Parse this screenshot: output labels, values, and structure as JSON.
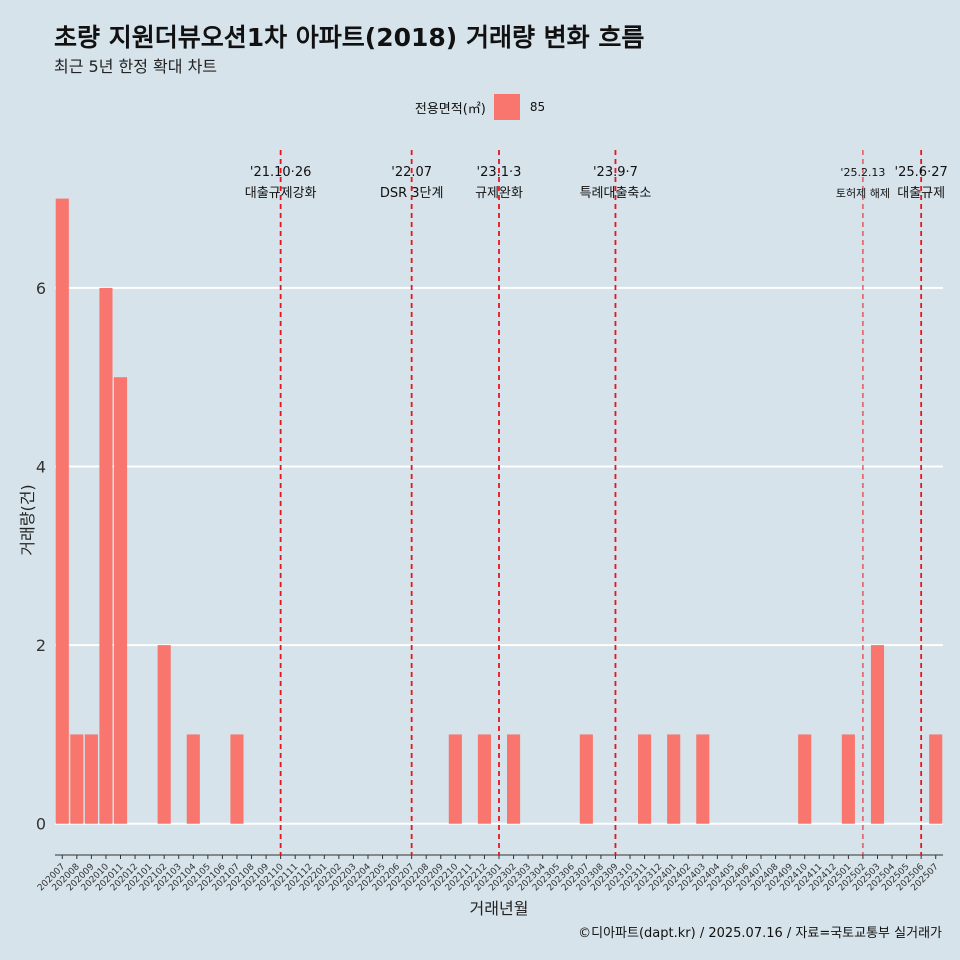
{
  "title": "초량 지원더뷰오션1차 아파트(2018) 거래량 변화 흐름",
  "subtitle": "최근 5년 한정 확대 차트",
  "caption": "©디아파트(dapt.kr) / 2025.07.16 / 자료=국토교통부 실거래가",
  "legend": {
    "title": "전용면적(㎡)",
    "label": "85",
    "color": "#f8766d"
  },
  "chart_data": {
    "type": "bar",
    "xlabel": "거래년월",
    "ylabel": "거래량(건)",
    "ylim": [
      -0.35,
      7.6
    ],
    "yticks": [
      0,
      2,
      4,
      6
    ],
    "grid": true,
    "legend_position": "top",
    "bar_color": "#f8766d",
    "categories": [
      "202007",
      "202008",
      "202009",
      "202010",
      "202011",
      "202012",
      "202101",
      "202102",
      "202103",
      "202104",
      "202105",
      "202106",
      "202107",
      "202108",
      "202109",
      "202110",
      "202111",
      "202112",
      "202201",
      "202202",
      "202203",
      "202204",
      "202205",
      "202206",
      "202207",
      "202208",
      "202209",
      "202210",
      "202211",
      "202212",
      "202301",
      "202302",
      "202303",
      "202304",
      "202305",
      "202306",
      "202307",
      "202308",
      "202309",
      "202310",
      "202311",
      "202312",
      "202401",
      "202402",
      "202403",
      "202404",
      "202405",
      "202406",
      "202407",
      "202408",
      "202409",
      "202410",
      "202411",
      "202412",
      "202501",
      "202502",
      "202503",
      "202504",
      "202505",
      "202506",
      "202507"
    ],
    "series": [
      {
        "name": "85",
        "values": [
          7,
          1,
          1,
          6,
          5,
          0,
          0,
          2,
          0,
          1,
          0,
          0,
          1,
          0,
          0,
          0,
          0,
          0,
          0,
          0,
          0,
          0,
          0,
          0,
          0,
          0,
          0,
          1,
          0,
          1,
          0,
          1,
          0,
          0,
          0,
          0,
          1,
          0,
          0,
          0,
          1,
          0,
          1,
          0,
          1,
          0,
          0,
          0,
          0,
          0,
          0,
          1,
          0,
          0,
          1,
          0,
          2,
          0,
          0,
          0,
          1
        ]
      }
    ],
    "annotations": [
      {
        "x": "202110",
        "date": "'21.10·26",
        "label": "대출규제강화",
        "small": false
      },
      {
        "x": "202207",
        "date": "'22.07",
        "label": "DSR 3단계",
        "small": false
      },
      {
        "x": "202301",
        "date": "'23.1·3",
        "label": "규제완화",
        "small": false
      },
      {
        "x": "202309",
        "date": "'23.9·7",
        "label": "특례대출축소",
        "small": false
      },
      {
        "x": "202502",
        "date": "'25.2.13",
        "label": "토허제 해제",
        "small": true
      },
      {
        "x": "202506",
        "date": "'25.6·27",
        "label": "대출규제",
        "small": false
      }
    ],
    "annotation_color": "#e8141e"
  }
}
